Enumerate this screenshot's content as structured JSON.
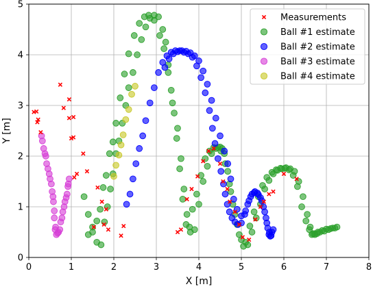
{
  "chart_data": {
    "type": "scatter",
    "xlabel": "X [m]",
    "ylabel": "Y [m]",
    "xlim": [
      0,
      8
    ],
    "ylim": [
      0,
      5
    ],
    "xticks": [
      "0",
      "1",
      "2",
      "3",
      "4",
      "5",
      "6",
      "7",
      "8"
    ],
    "yticks": [
      "0",
      "1",
      "2",
      "3",
      "4",
      "5"
    ],
    "grid": true,
    "legend_position": "top-right",
    "series": [
      {
        "name": "Measurements",
        "marker": "x",
        "color": "#ff0000",
        "x": [
          0.12,
          0.18,
          0.22,
          0.2,
          0.28,
          0.74,
          0.95,
          1.0,
          1.05,
          1.05,
          0.95,
          0.82,
          1.28,
          1.13,
          1.07,
          1.37,
          1.53,
          1.62,
          1.72,
          1.82,
          1.77,
          1.87,
          2.17,
          2.23,
          3.5,
          3.58,
          3.72,
          3.83,
          3.97,
          4.1,
          4.23,
          4.35,
          4.5,
          4.57,
          4.67,
          4.73,
          4.85,
          4.95,
          5.03,
          5.18,
          5.33,
          5.45,
          5.53,
          5.65,
          5.75,
          6.0,
          6.3
        ],
        "y": [
          2.87,
          2.88,
          2.72,
          2.67,
          2.47,
          3.41,
          3.12,
          2.35,
          2.37,
          2.77,
          2.75,
          2.95,
          2.05,
          1.65,
          1.58,
          1.7,
          0.6,
          1.38,
          1.1,
          0.95,
          0.65,
          0.55,
          0.43,
          0.62,
          0.5,
          0.55,
          1.15,
          1.35,
          1.6,
          1.9,
          2.1,
          2.15,
          1.85,
          1.5,
          1.35,
          1.1,
          0.9,
          0.65,
          0.4,
          0.35,
          0.75,
          1.0,
          1.1,
          1.25,
          1.3,
          1.65,
          1.55
        ]
      },
      {
        "name": "Ball #1 estimate",
        "marker": "o",
        "color": "#2ca02c",
        "x": [
          1.3,
          1.4,
          1.5,
          1.6,
          1.7,
          1.78,
          1.85,
          1.92,
          1.98,
          2.05,
          2.12,
          2.2,
          2.28,
          2.35,
          2.45,
          2.55,
          2.65,
          2.75,
          2.85,
          2.95,
          3.05,
          3.15,
          3.22,
          3.28,
          3.35,
          3.42,
          3.48,
          3.55,
          3.62,
          3.7,
          3.8,
          3.9,
          4.0,
          4.1,
          4.2,
          4.3,
          4.4,
          4.5,
          4.55,
          4.6,
          4.68,
          4.75,
          4.85,
          4.95,
          5.05,
          5.15,
          5.25,
          5.35,
          5.45,
          5.55,
          5.65,
          5.75,
          5.85,
          5.95,
          6.05,
          6.15,
          6.25,
          6.35,
          6.45,
          6.55,
          6.62,
          6.68,
          6.73,
          6.78,
          6.85,
          6.95,
          7.05,
          7.15,
          7.25
        ],
        "y": [
          1.2,
          0.85,
          0.5,
          0.3,
          0.25,
          0.7,
          1.0,
          1.35,
          1.65,
          2.05,
          2.3,
          2.65,
          3.0,
          3.35,
          3.65,
          4.0,
          4.3,
          4.55,
          4.72,
          4.78,
          4.75,
          4.5,
          4.25,
          3.8,
          3.3,
          2.85,
          2.35,
          1.75,
          1.15,
          0.65,
          0.5,
          0.55,
          1.05,
          1.5,
          1.8,
          2.05,
          2.15,
          2.18,
          2.15,
          2.05,
          1.7,
          1.3,
          0.85,
          0.45,
          0.22,
          0.25,
          0.5,
          0.78,
          1.05,
          1.35,
          1.52,
          1.65,
          1.72,
          1.75,
          1.77,
          1.75,
          1.7,
          1.5,
          1.2,
          0.85,
          0.6,
          0.47,
          0.45,
          0.47,
          0.5,
          0.52,
          0.55,
          0.58,
          0.6
        ],
        "extra_x": [
          1.4,
          1.5,
          1.6,
          1.68,
          1.75,
          1.82,
          1.9,
          1.98,
          2.05,
          2.15,
          2.25,
          2.35,
          2.48,
          2.6,
          2.72,
          2.82,
          2.95,
          3.08,
          3.18,
          3.28,
          3.38,
          3.5,
          3.58,
          3.65,
          3.72,
          3.78,
          3.85,
          3.95,
          4.05,
          4.15,
          4.25,
          4.35,
          4.45,
          4.52,
          4.62,
          4.72,
          4.8,
          4.9,
          5.0,
          5.1,
          5.2,
          5.3,
          5.4,
          5.5,
          5.6,
          5.72,
          5.82,
          5.92,
          6.02,
          6.12,
          6.22,
          6.32,
          6.42,
          6.52,
          6.6,
          6.66,
          6.72,
          6.8,
          6.9,
          7.0,
          7.1,
          7.2
        ],
        "extra_y": [
          0.45,
          0.6,
          0.72,
          0.95,
          1.38,
          1.62,
          2.05,
          2.28,
          2.65,
          3.15,
          3.62,
          4.02,
          4.38,
          4.62,
          4.75,
          4.78,
          4.68,
          4.38,
          4.12,
          3.65,
          3.05,
          2.55,
          1.95,
          1.35,
          0.85,
          0.6,
          0.95,
          1.25,
          1.62,
          1.95,
          2.1,
          2.17,
          2.17,
          2.1,
          1.85,
          1.45,
          1.05,
          0.65,
          0.35,
          0.3,
          0.62,
          0.9,
          1.2,
          1.42,
          1.58,
          1.68,
          1.73,
          1.76,
          1.76,
          1.73,
          1.62,
          1.4,
          1.0,
          0.72,
          0.55,
          0.45,
          0.47,
          0.5,
          0.53,
          0.56,
          0.57,
          0.58
        ]
      },
      {
        "name": "Ball #2 estimate",
        "marker": "o",
        "color": "#0000ff",
        "x": [
          2.3,
          2.38,
          2.45,
          2.52,
          2.6,
          2.68,
          2.75,
          2.85,
          2.95,
          3.05,
          3.15,
          3.25,
          3.35,
          3.45,
          3.55,
          3.65,
          3.75,
          3.85,
          3.95,
          4.05,
          4.15,
          4.25,
          4.32,
          4.38,
          4.45,
          4.52,
          4.58,
          4.62,
          4.67,
          4.72,
          4.78,
          4.85,
          4.92,
          5.0,
          5.08,
          5.15,
          5.22,
          5.3,
          5.38,
          5.45,
          5.52,
          5.58,
          5.62,
          5.65,
          5.68,
          5.72,
          5.75
        ],
        "y": [
          1.05,
          1.25,
          1.55,
          1.85,
          2.15,
          2.4,
          2.7,
          3.05,
          3.35,
          3.65,
          3.85,
          3.98,
          4.05,
          4.08,
          4.08,
          4.05,
          4.02,
          3.95,
          3.78,
          3.55,
          3.25,
          2.9,
          2.55,
          2.25,
          1.95,
          1.7,
          1.45,
          1.25,
          1.05,
          0.9,
          0.78,
          0.7,
          0.65,
          0.68,
          0.85,
          1.05,
          1.2,
          1.28,
          1.27,
          1.18,
          1.0,
          0.78,
          0.58,
          0.45,
          0.42,
          0.5,
          0.55
        ],
        "extra_x": [
          3.2,
          3.3,
          3.4,
          3.5,
          3.6,
          3.7,
          3.8,
          3.9,
          4.0,
          4.1,
          4.2,
          4.3,
          4.4,
          4.5,
          4.6,
          4.68,
          4.75,
          4.82,
          4.9,
          5.0,
          5.1,
          5.18,
          5.25,
          5.32,
          5.4,
          5.48,
          5.55,
          5.6,
          5.66,
          5.7
        ],
        "extra_y": [
          3.75,
          3.92,
          4.02,
          4.06,
          4.08,
          4.07,
          4.04,
          3.98,
          3.88,
          3.68,
          3.42,
          3.1,
          2.75,
          2.4,
          2.1,
          1.85,
          1.55,
          1.15,
          0.95,
          0.82,
          0.92,
          1.12,
          1.25,
          1.3,
          1.24,
          1.12,
          0.9,
          0.68,
          0.5,
          0.43
        ]
      },
      {
        "name": "Ball #3 estimate",
        "marker": "o",
        "color": "#d63fd6",
        "x": [
          0.3,
          0.35,
          0.4,
          0.45,
          0.5,
          0.55,
          0.58,
          0.6,
          0.62,
          0.65,
          0.7,
          0.75,
          0.8,
          0.85,
          0.9,
          0.92,
          0.95
        ],
        "y": [
          2.4,
          2.15,
          2.0,
          1.75,
          1.55,
          1.3,
          1.1,
          0.78,
          0.55,
          0.45,
          0.5,
          0.7,
          0.9,
          1.1,
          1.25,
          1.4,
          1.55
        ],
        "extra_x": [
          0.32,
          0.38,
          0.42,
          0.48,
          0.53,
          0.57,
          0.6,
          0.63,
          0.68,
          0.73,
          0.78,
          0.83,
          0.88,
          0.93
        ],
        "extra_y": [
          2.3,
          2.05,
          1.85,
          1.65,
          1.45,
          1.2,
          0.92,
          0.6,
          0.48,
          0.55,
          0.78,
          1.0,
          1.18,
          1.45
        ]
      },
      {
        "name": "Ball #4 estimate",
        "marker": "o",
        "color": "#c8c828",
        "x": [
          2.0,
          2.05,
          2.12,
          2.17,
          2.22,
          2.28,
          2.35,
          2.42,
          2.5
        ],
        "y": [
          1.6,
          1.82,
          2.02,
          2.22,
          2.42,
          2.72,
          2.92,
          3.22,
          3.38
        ]
      }
    ]
  }
}
